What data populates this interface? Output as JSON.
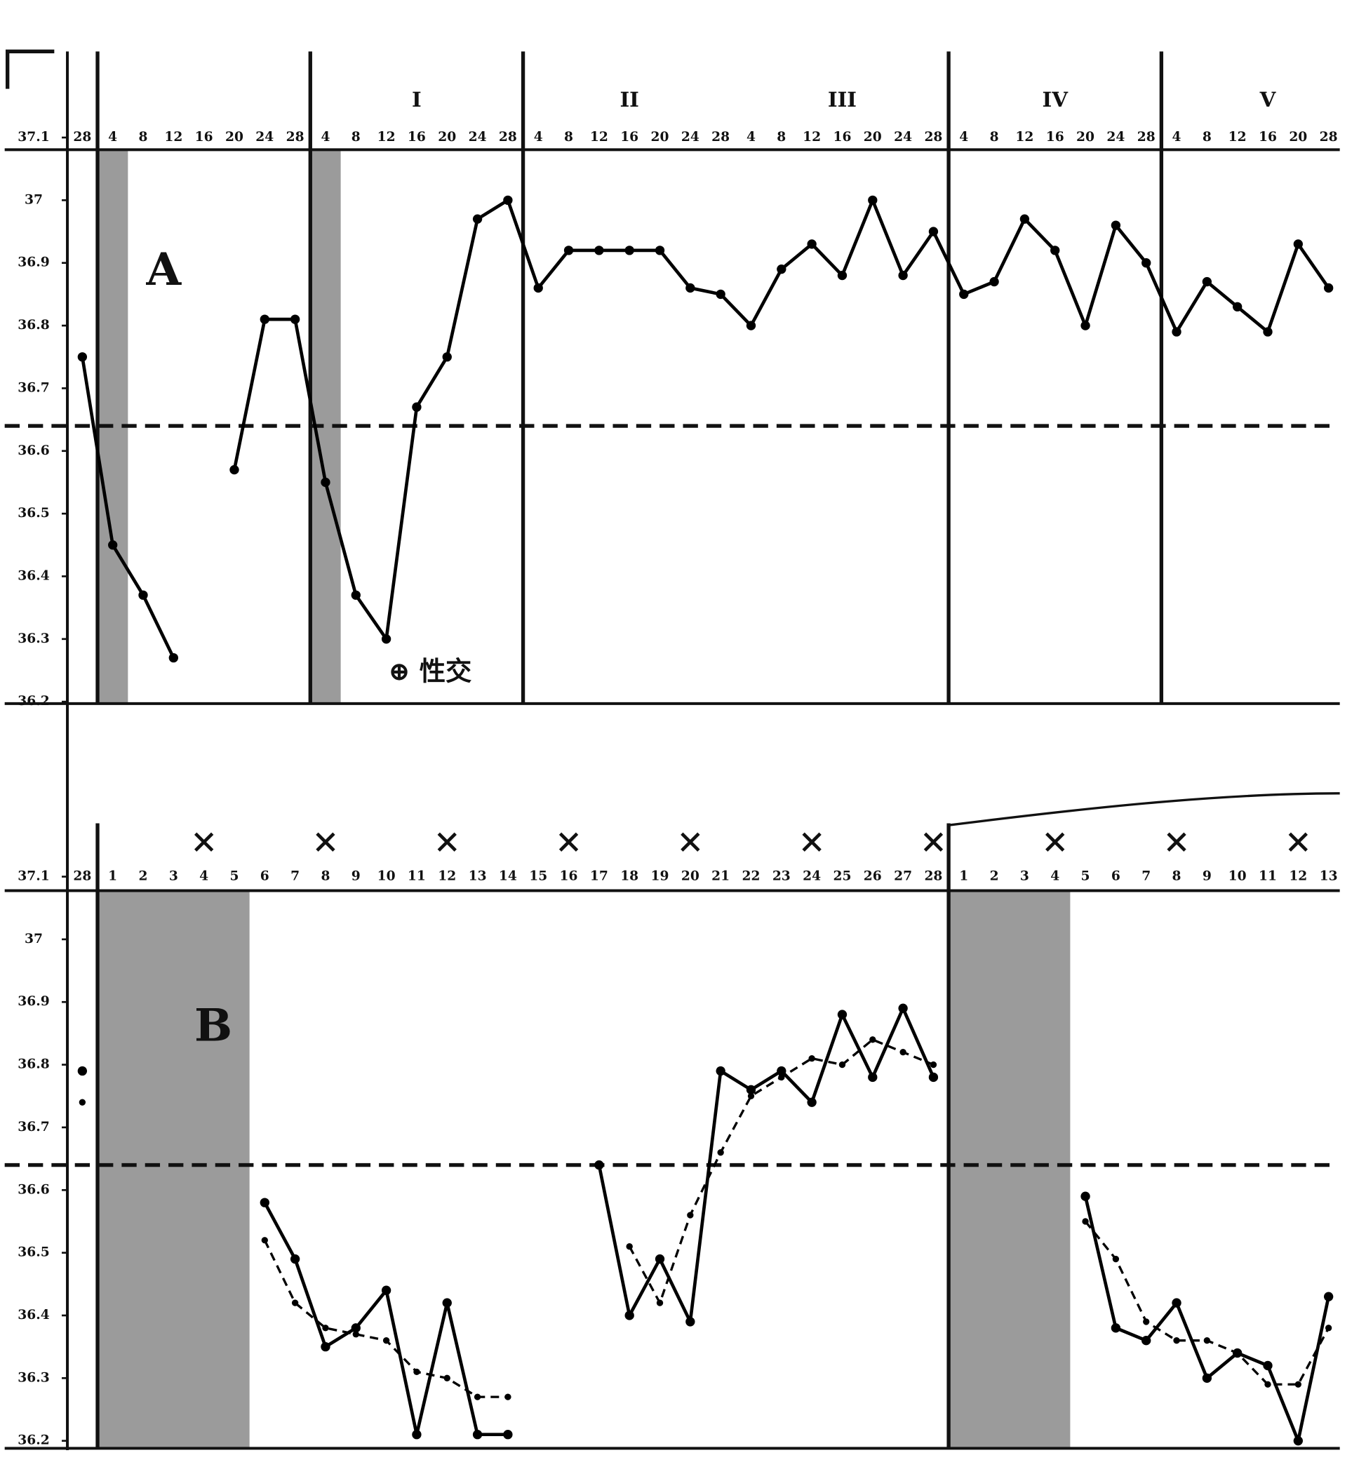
{
  "chart_data": [
    {
      "type": "line",
      "panel_label": "A",
      "categories": [
        "28",
        "4",
        "8",
        "12",
        "16",
        "20",
        "24",
        "28",
        "4",
        "8",
        "12",
        "16",
        "20",
        "24",
        "28",
        "4",
        "8",
        "12",
        "16",
        "20",
        "24",
        "28",
        "4",
        "8",
        "12",
        "16",
        "20",
        "24",
        "28",
        "4",
        "8",
        "12",
        "16",
        "20",
        "24",
        "28",
        "4",
        "8",
        "12",
        "16",
        "20",
        "28"
      ],
      "series": [
        {
          "color": "#000000",
          "style": "solid",
          "values": [
            36.75,
            36.45,
            36.37,
            36.27,
            null,
            36.57,
            36.81,
            36.81,
            36.55,
            36.37,
            36.3,
            36.67,
            36.75,
            36.97,
            37.0,
            36.86,
            36.92,
            36.92,
            36.92,
            36.92,
            36.86,
            36.85,
            36.8,
            36.89,
            36.93,
            36.88,
            37.0,
            36.88,
            36.95,
            36.85,
            36.87,
            36.97,
            36.92,
            36.8,
            36.96,
            36.9,
            36.79,
            36.87,
            36.83,
            36.79,
            36.93,
            36.86
          ]
        }
      ],
      "ylim": [
        36.2,
        37.1
      ],
      "yticks": [
        36.2,
        36.3,
        36.4,
        36.5,
        36.6,
        36.7,
        36.8,
        36.9,
        37,
        37.1
      ],
      "reference_line": 36.64,
      "cycle_labels": [
        "I",
        "II",
        "III",
        "IV",
        "V"
      ],
      "annotation": "⊕ 性交"
    },
    {
      "type": "line",
      "panel_label": "B",
      "categories": [
        "28",
        "1",
        "2",
        "3",
        "4",
        "5",
        "6",
        "7",
        "8",
        "9",
        "10",
        "11",
        "12",
        "13",
        "14",
        "15",
        "16",
        "17",
        "18",
        "19",
        "20",
        "21",
        "22",
        "23",
        "24",
        "25",
        "26",
        "27",
        "28",
        "1",
        "2",
        "3",
        "4",
        "5",
        "6",
        "7",
        "8",
        "9",
        "10",
        "11",
        "12",
        "13"
      ],
      "series": [
        {
          "color": "#000000",
          "style": "solid",
          "values": [
            36.79,
            null,
            null,
            null,
            null,
            null,
            36.58,
            36.49,
            36.35,
            36.38,
            36.44,
            36.21,
            36.42,
            36.21,
            36.21,
            null,
            null,
            36.64,
            36.4,
            36.49,
            36.39,
            36.79,
            36.76,
            36.79,
            36.74,
            36.88,
            36.78,
            36.89,
            36.78,
            null,
            null,
            null,
            null,
            36.59,
            36.38,
            36.36,
            36.42,
            36.3,
            36.34,
            36.32,
            36.2,
            36.43
          ]
        },
        {
          "color": "#000000",
          "style": "dashed",
          "values": [
            36.74,
            null,
            null,
            null,
            null,
            null,
            36.52,
            36.42,
            36.38,
            36.37,
            36.36,
            36.31,
            36.3,
            36.27,
            36.27,
            null,
            null,
            null,
            36.51,
            36.42,
            36.56,
            36.66,
            36.75,
            36.78,
            36.81,
            36.8,
            36.84,
            36.82,
            36.8,
            null,
            null,
            null,
            null,
            36.55,
            36.49,
            36.39,
            36.36,
            36.36,
            36.34,
            36.29,
            36.29,
            36.38
          ]
        }
      ],
      "ylim": [
        36.2,
        37.1
      ],
      "yticks": [
        36.2,
        36.3,
        36.4,
        36.5,
        36.6,
        36.7,
        36.8,
        36.9,
        37,
        37.1
      ],
      "reference_line": 36.64
    }
  ]
}
